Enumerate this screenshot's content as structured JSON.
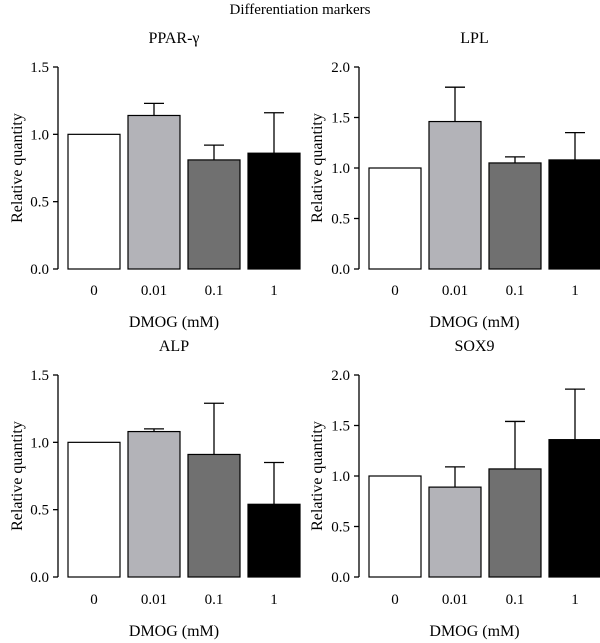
{
  "figure": {
    "title": "Differentiation markers"
  },
  "chart_data": [
    {
      "type": "bar",
      "title": "PPAR-γ",
      "categories": [
        "0",
        "0.01",
        "0.1",
        "1"
      ],
      "values": [
        1.0,
        1.14,
        0.81,
        0.86
      ],
      "errors": [
        0,
        0.09,
        0.11,
        0.3
      ],
      "colors": [
        "#ffffff",
        "#b3b3b8",
        "#707070",
        "#000000"
      ],
      "xlabel": "DMOG (mM)",
      "ylabel": "Relative quantity",
      "ylim": [
        0,
        1.5
      ],
      "yticks": [
        "0.0",
        "0.5",
        "1.0",
        "1.5"
      ]
    },
    {
      "type": "bar",
      "title": "LPL",
      "categories": [
        "0",
        "0.01",
        "0.1",
        "1"
      ],
      "values": [
        1.0,
        1.46,
        1.05,
        1.08
      ],
      "errors": [
        0,
        0.34,
        0.06,
        0.27
      ],
      "colors": [
        "#ffffff",
        "#b3b3b8",
        "#707070",
        "#000000"
      ],
      "xlabel": "DMOG (mM)",
      "ylabel": "Relative quantity",
      "ylim": [
        0,
        2.0
      ],
      "yticks": [
        "0.0",
        "0.5",
        "1.0",
        "1.5",
        "2.0"
      ]
    },
    {
      "type": "bar",
      "title": "ALP",
      "categories": [
        "0",
        "0.01",
        "0.1",
        "1"
      ],
      "values": [
        1.0,
        1.08,
        0.91,
        0.54
      ],
      "errors": [
        0,
        0.02,
        0.38,
        0.31
      ],
      "colors": [
        "#ffffff",
        "#b3b3b8",
        "#707070",
        "#000000"
      ],
      "xlabel": "DMOG (mM)",
      "ylabel": "Relative quantity",
      "ylim": [
        0,
        1.5
      ],
      "yticks": [
        "0.0",
        "0.5",
        "1.0",
        "1.5"
      ]
    },
    {
      "type": "bar",
      "title": "SOX9",
      "categories": [
        "0",
        "0.01",
        "0.1",
        "1"
      ],
      "values": [
        1.0,
        0.89,
        1.07,
        1.36
      ],
      "errors": [
        0,
        0.2,
        0.47,
        0.5
      ],
      "colors": [
        "#ffffff",
        "#b3b3b8",
        "#707070",
        "#000000"
      ],
      "xlabel": "DMOG (mM)",
      "ylabel": "Relative quantity",
      "ylim": [
        0,
        2.0
      ],
      "yticks": [
        "0.0",
        "0.5",
        "1.0",
        "1.5",
        "2.0"
      ]
    }
  ]
}
